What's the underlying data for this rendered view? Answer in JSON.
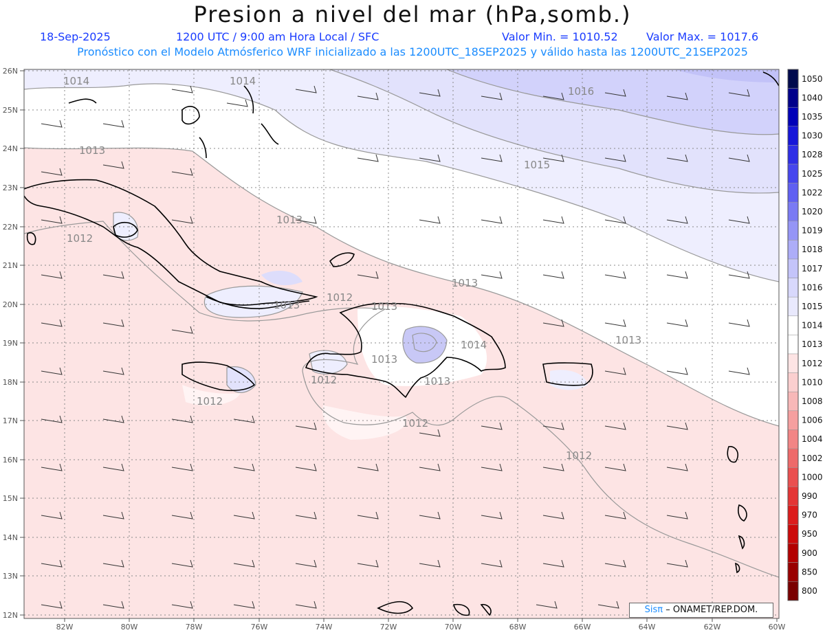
{
  "header": {
    "title": "Presion a nivel del mar (hPa,somb.)",
    "date": "18-Sep-2025",
    "time": "1200 UTC / 9:00 am Hora Local / SFC",
    "valmin": "Valor Min. = 1010.52",
    "valmax": "Valor Max. = 1017.6",
    "subtitle": "Pronóstico con el Modelo Atmósferico WRF inicializado a las 1200UTC_18SEP2025 y válido hasta las  1200UTC_21SEP2025"
  },
  "map": {
    "lat_labels": [
      "26N",
      "25N",
      "24N",
      "23N",
      "22N",
      "21N",
      "20N",
      "19N",
      "18N",
      "17N",
      "16N",
      "15N",
      "14N",
      "13N",
      "12N"
    ],
    "lon_labels": [
      "82W",
      "80W",
      "78W",
      "76W",
      "74W",
      "72W",
      "70W",
      "68W",
      "66W",
      "64W",
      "62W",
      "60W"
    ],
    "contour_labels": [
      "1014",
      "1014",
      "1016",
      "1013",
      "1015",
      "1013",
      "1012",
      "1013",
      "1012",
      "1013",
      "1013",
      "1013",
      "1014",
      "1013",
      "1013",
      "1012",
      "1012",
      "1012",
      "1012"
    ]
  },
  "colorbar": {
    "levels": [
      "1050",
      "1040",
      "1035",
      "1030",
      "1028",
      "1025",
      "1022",
      "1020",
      "1019",
      "1018",
      "1017",
      "1016",
      "1015",
      "1014",
      "1013",
      "1012",
      "1010",
      "1008",
      "1006",
      "1004",
      "1002",
      "1000",
      "990",
      "970",
      "950",
      "900",
      "850",
      "800"
    ],
    "colors": [
      "#000a4d",
      "#00008b",
      "#0000b8",
      "#1616d9",
      "#2e2ee6",
      "#4646ee",
      "#6060f2",
      "#7a7af4",
      "#9595f6",
      "#adadf8",
      "#c4c4fa",
      "#d8d8fc",
      "#e9e9fd",
      "#ffffff",
      "#ffffff",
      "#fde4e4",
      "#fbcfcf",
      "#f8b8b8",
      "#f59f9f",
      "#f28585",
      "#ee6a6a",
      "#ea4f4f",
      "#e43535",
      "#dc1c1c",
      "#cc0a0a",
      "#b30000",
      "#990000",
      "#7a0000"
    ]
  },
  "credit": {
    "brand": "Sisπ",
    "text": "– ONAMET/REP.DOM."
  }
}
